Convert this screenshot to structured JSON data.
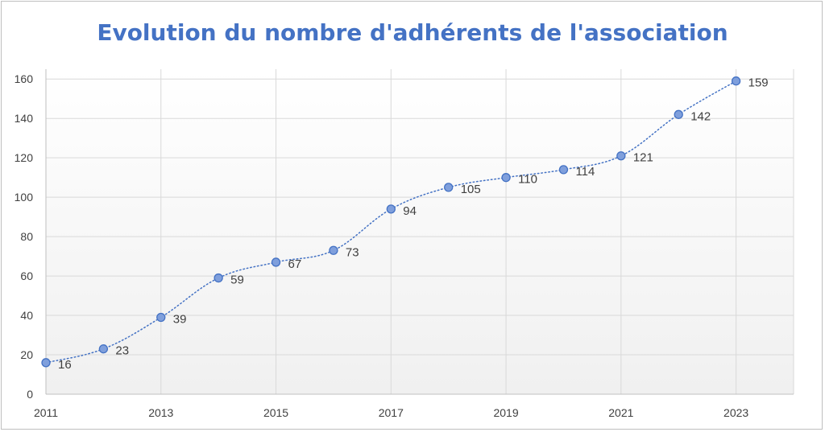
{
  "chart_data": {
    "type": "line",
    "title": "Evolution du nombre d'adhérents de l'association",
    "xlabel": "",
    "ylabel": "",
    "x": [
      2011,
      2012,
      2013,
      2014,
      2015,
      2016,
      2017,
      2018,
      2019,
      2020,
      2021,
      2022,
      2023
    ],
    "values": [
      16,
      23,
      39,
      59,
      67,
      73,
      94,
      105,
      110,
      114,
      121,
      142,
      159
    ],
    "x_tick_labels": [
      "2011",
      "2013",
      "2015",
      "2017",
      "2019",
      "2021",
      "2023"
    ],
    "y_tick_labels": [
      "0",
      "20",
      "40",
      "60",
      "80",
      "100",
      "120",
      "140",
      "160"
    ],
    "ylim": [
      0,
      165
    ],
    "xlim": [
      2011,
      2024
    ],
    "grid": true,
    "legend": "none",
    "line_style": "dotted",
    "colors": {
      "title": "#4472c4",
      "series": "#4472c4",
      "marker_fill": "#7f9fdc",
      "grid": "#d9d9d9",
      "text": "#404040"
    }
  }
}
